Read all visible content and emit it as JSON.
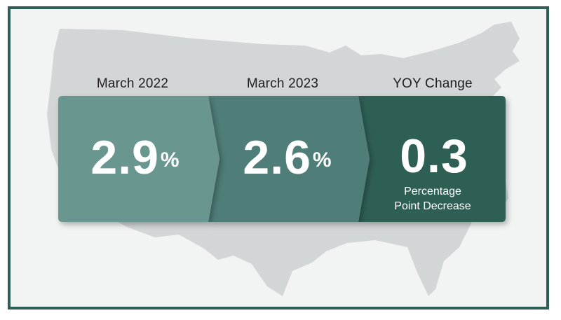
{
  "cards": [
    {
      "label": "March 2022",
      "value": "2.9",
      "unit": "%",
      "color": "#6a9690"
    },
    {
      "label": "March 2023",
      "value": "2.6",
      "unit": "%",
      "color": "#4f7d77"
    },
    {
      "label": "YOY Change",
      "value": "0.3",
      "note_line1": "Percentage",
      "note_line2": "Point Decrease",
      "color": "#2e5e55"
    }
  ],
  "background": {
    "frame_color": "#2e5e55",
    "map_color": "#d3d6d6",
    "panel_color": "#f1f4f3"
  }
}
